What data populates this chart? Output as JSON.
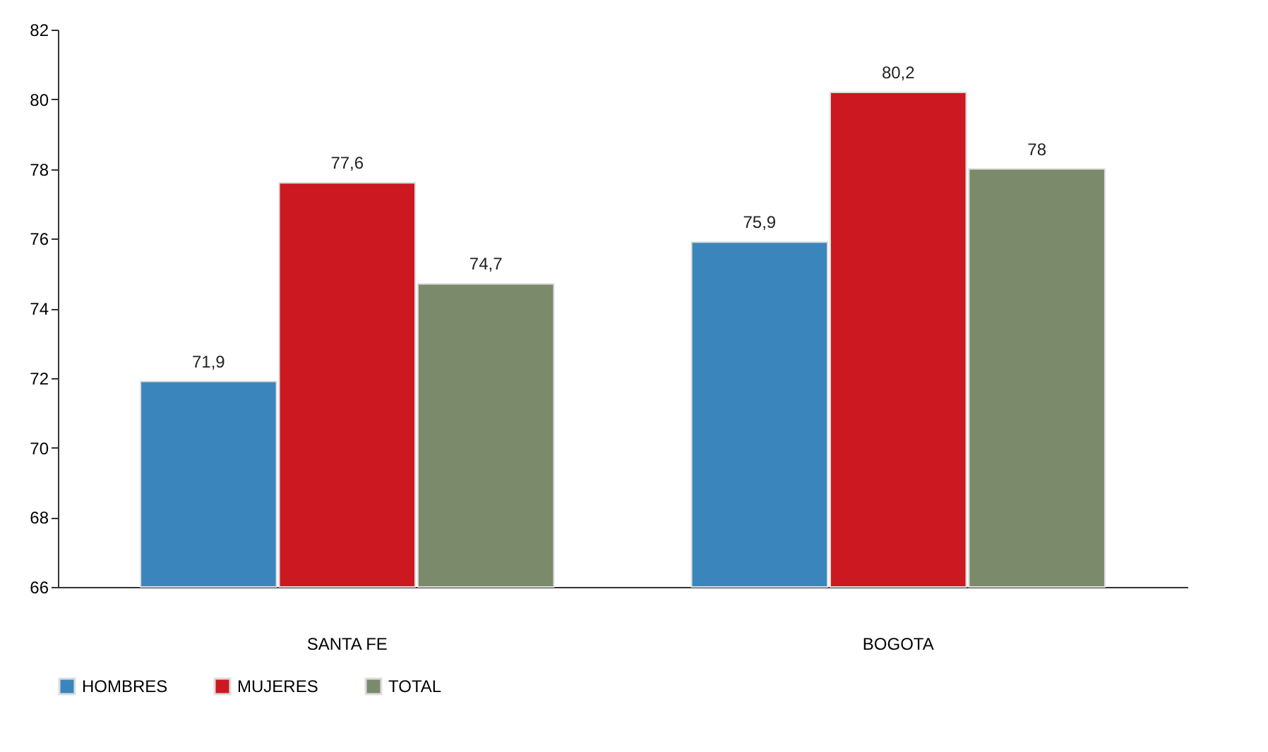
{
  "chart_data": {
    "type": "bar",
    "categories": [
      "SANTA FE",
      "BOGOTA"
    ],
    "series": [
      {
        "name": "HOMBRES",
        "color": "#3a86bc",
        "values": [
          71.9,
          75.9
        ],
        "value_labels": [
          "71,9",
          "75,9"
        ]
      },
      {
        "name": "MUJERES",
        "color": "#cc1820",
        "values": [
          77.6,
          80.2
        ],
        "value_labels": [
          "77,6",
          "80,2"
        ]
      },
      {
        "name": "TOTAL",
        "color": "#7a8a6a",
        "values": [
          74.7,
          78
        ],
        "value_labels": [
          "74,7",
          "78"
        ]
      }
    ],
    "ylim": [
      66,
      82
    ],
    "yticks": [
      66,
      68,
      70,
      72,
      74,
      76,
      78,
      80,
      82
    ],
    "grid": false,
    "legend": "bottom"
  }
}
